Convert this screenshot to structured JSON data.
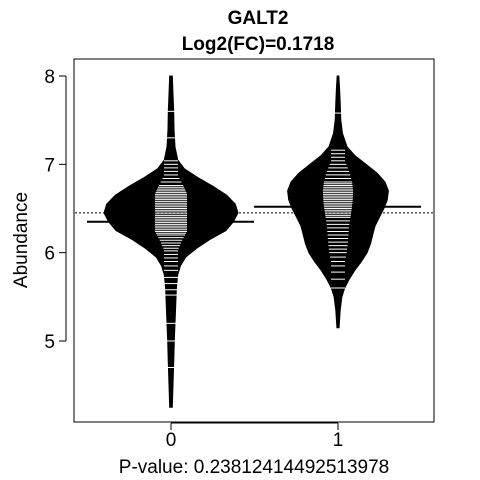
{
  "chart_data": {
    "type": "beanplot",
    "title": "GALT2",
    "subtitle": "Log2(FC)=0.1718",
    "xlabel": "P-value: 0.23812414492513978",
    "ylabel": "Abundance",
    "categories": [
      "0",
      "1"
    ],
    "yticks": [
      "5",
      "6",
      "7",
      "8"
    ],
    "ylim": [
      4.1,
      8.2
    ],
    "overall_mean": 6.45,
    "groups": [
      {
        "category": "0",
        "mean": 6.35,
        "density": [
          [
            4.25,
            0.02
          ],
          [
            4.5,
            0.03
          ],
          [
            4.75,
            0.04
          ],
          [
            5.0,
            0.05
          ],
          [
            5.2,
            0.06
          ],
          [
            5.4,
            0.07
          ],
          [
            5.6,
            0.08
          ],
          [
            5.75,
            0.1
          ],
          [
            5.85,
            0.14
          ],
          [
            5.95,
            0.22
          ],
          [
            6.05,
            0.38
          ],
          [
            6.15,
            0.58
          ],
          [
            6.25,
            0.82
          ],
          [
            6.35,
            0.93
          ],
          [
            6.45,
            1.0
          ],
          [
            6.55,
            0.96
          ],
          [
            6.65,
            0.83
          ],
          [
            6.75,
            0.63
          ],
          [
            6.85,
            0.4
          ],
          [
            6.95,
            0.2
          ],
          [
            7.05,
            0.1
          ],
          [
            7.2,
            0.06
          ],
          [
            7.4,
            0.045
          ],
          [
            7.6,
            0.04
          ],
          [
            7.8,
            0.03
          ],
          [
            8.0,
            0.02
          ]
        ],
        "points": [
          4.7,
          5.0,
          5.2,
          5.52,
          5.58,
          5.65,
          5.72,
          5.8,
          5.85,
          5.9,
          5.94,
          5.98,
          6.02,
          6.05,
          6.08,
          6.11,
          6.14,
          6.17,
          6.2,
          6.22,
          6.24,
          6.26,
          6.28,
          6.3,
          6.32,
          6.34,
          6.36,
          6.38,
          6.4,
          6.42,
          6.44,
          6.46,
          6.48,
          6.5,
          6.52,
          6.54,
          6.56,
          6.58,
          6.6,
          6.62,
          6.64,
          6.66,
          6.68,
          6.7,
          6.72,
          6.74,
          6.76,
          6.8,
          6.84,
          6.88,
          6.92,
          6.96,
          7.0,
          7.04,
          7.3,
          7.6
        ]
      },
      {
        "category": "1",
        "mean": 6.52,
        "density": [
          [
            5.15,
            0.02
          ],
          [
            5.35,
            0.04
          ],
          [
            5.5,
            0.07
          ],
          [
            5.6,
            0.12
          ],
          [
            5.7,
            0.2
          ],
          [
            5.8,
            0.3
          ],
          [
            5.9,
            0.42
          ],
          [
            6.0,
            0.52
          ],
          [
            6.1,
            0.58
          ],
          [
            6.2,
            0.62
          ],
          [
            6.3,
            0.66
          ],
          [
            6.4,
            0.74
          ],
          [
            6.5,
            0.82
          ],
          [
            6.6,
            0.88
          ],
          [
            6.7,
            0.9
          ],
          [
            6.8,
            0.84
          ],
          [
            6.9,
            0.7
          ],
          [
            7.0,
            0.5
          ],
          [
            7.1,
            0.3
          ],
          [
            7.2,
            0.16
          ],
          [
            7.35,
            0.08
          ],
          [
            7.5,
            0.05
          ],
          [
            7.7,
            0.04
          ],
          [
            7.9,
            0.025
          ],
          [
            8.0,
            0.015
          ]
        ],
        "points": [
          5.6,
          5.7,
          5.78,
          5.85,
          5.9,
          5.95,
          6.0,
          6.04,
          6.08,
          6.12,
          6.16,
          6.2,
          6.24,
          6.28,
          6.32,
          6.36,
          6.4,
          6.42,
          6.44,
          6.46,
          6.48,
          6.5,
          6.52,
          6.54,
          6.56,
          6.58,
          6.6,
          6.62,
          6.64,
          6.66,
          6.68,
          6.7,
          6.72,
          6.74,
          6.76,
          6.78,
          6.8,
          6.84,
          6.88,
          6.92,
          6.96,
          7.0,
          7.04,
          7.08,
          7.12,
          7.16,
          7.58
        ]
      }
    ]
  }
}
